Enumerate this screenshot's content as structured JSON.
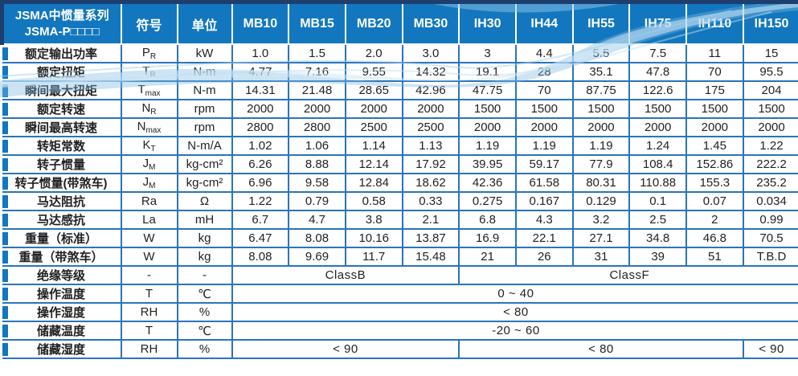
{
  "table_title": {
    "line1": "JSMA中惯量系列",
    "line2": "JSMA-P□□□□"
  },
  "columns": {
    "symbol": "符号",
    "unit": "单位",
    "models": [
      "MB10",
      "MB15",
      "MB20",
      "MB30",
      "IH30",
      "IH44",
      "IH55",
      "IH75",
      "IH110",
      "IH150"
    ]
  },
  "colors": {
    "header_blue": "#1277be",
    "border_blue": "#2a74b9",
    "navy_edge": "#1e3f6e",
    "wave_light": "#cfe7f5",
    "wave_mid": "#7db9e0",
    "body_text": "#1f1f1f"
  },
  "rows": [
    {
      "label": "额定输出功率",
      "symbol": {
        "base": "P",
        "sub": "R"
      },
      "unit": "kW",
      "values": [
        "1.0",
        "1.5",
        "2.0",
        "3.0",
        "3",
        "4.4",
        "5.5",
        "7.5",
        "11",
        "15"
      ]
    },
    {
      "label": "额定扭矩",
      "symbol": {
        "base": "T",
        "sub": "R"
      },
      "unit": "N-m",
      "values": [
        "4.77",
        "7.16",
        "9.55",
        "14.32",
        "19.1",
        "28",
        "35.1",
        "47.8",
        "70",
        "95.5"
      ]
    },
    {
      "label": "瞬间最大扭矩",
      "symbol": {
        "base": "T",
        "sub": "max"
      },
      "unit": "N-m",
      "values": [
        "14.31",
        "21.48",
        "28.65",
        "42.96",
        "47.75",
        "70",
        "87.75",
        "122.6",
        "175",
        "204"
      ]
    },
    {
      "label": "额定转速",
      "symbol": {
        "base": "N",
        "sub": "R"
      },
      "unit": "rpm",
      "values": [
        "2000",
        "2000",
        "2000",
        "2000",
        "1500",
        "1500",
        "1500",
        "1500",
        "1500",
        "1500"
      ]
    },
    {
      "label": "瞬间最高转速",
      "symbol": {
        "base": "N",
        "sub": "max"
      },
      "unit": "rpm",
      "values": [
        "2800",
        "2800",
        "2500",
        "2500",
        "2000",
        "2000",
        "2000",
        "2000",
        "2000",
        "2000"
      ]
    },
    {
      "label": "转矩常数",
      "symbol": {
        "base": "K",
        "sub": "T"
      },
      "unit": "N-m/A",
      "values": [
        "1.02",
        "1.06",
        "1.14",
        "1.13",
        "1.19",
        "1.19",
        "1.19",
        "1.24",
        "1.45",
        "1.22"
      ]
    },
    {
      "label": "转子惯量",
      "symbol": {
        "base": "J",
        "sub": "M"
      },
      "unit": "kg-cm²",
      "values": [
        "6.26",
        "8.88",
        "12.14",
        "17.92",
        "39.95",
        "59.17",
        "77.9",
        "108.4",
        "152.86",
        "222.2"
      ]
    },
    {
      "label": "转子惯量(带煞车)",
      "symbol": {
        "base": "J",
        "sub": "M"
      },
      "unit": "kg-cm²",
      "values": [
        "6.96",
        "9.58",
        "12.84",
        "18.62",
        "42.36",
        "61.58",
        "80.31",
        "110.88",
        "155.3",
        "235.2"
      ]
    },
    {
      "label": "马达阻抗",
      "symbol": {
        "base": "Ra",
        "sub": ""
      },
      "unit": "Ω",
      "values": [
        "1.22",
        "0.79",
        "0.58",
        "0.33",
        "0.275",
        "0.167",
        "0.129",
        "0.1",
        "0.07",
        "0.034"
      ]
    },
    {
      "label": "马达感抗",
      "symbol": {
        "base": "La",
        "sub": ""
      },
      "unit": "mH",
      "values": [
        "6.7",
        "4.7",
        "3.8",
        "2.1",
        "6.8",
        "4.3",
        "3.2",
        "2.5",
        "2",
        "0.99"
      ]
    },
    {
      "label": "重量（标准）",
      "symbol": {
        "base": "W",
        "sub": ""
      },
      "unit": "kg",
      "values": [
        "6.47",
        "8.08",
        "10.16",
        "13.87",
        "16.9",
        "22.1",
        "27.1",
        "34.8",
        "46.8",
        "70.5"
      ]
    },
    {
      "label": "重量（带煞车）",
      "symbol": {
        "base": "W",
        "sub": ""
      },
      "unit": "kg",
      "values": [
        "8.08",
        "9.69",
        "11.7",
        "15.48",
        "21",
        "26",
        "31",
        "39",
        "51",
        "T.B.D"
      ]
    },
    {
      "label": "绝缘等级",
      "symbol": {
        "base": "-",
        "sub": ""
      },
      "unit": "-",
      "spans": [
        {
          "text": "ClassB",
          "cols": 4
        },
        {
          "text": "ClassF",
          "cols": 6
        }
      ]
    },
    {
      "label": "操作温度",
      "symbol": {
        "base": "T",
        "sub": ""
      },
      "unit": "℃",
      "spans": [
        {
          "text": "0 ~ 40",
          "cols": 10
        }
      ]
    },
    {
      "label": "操作湿度",
      "symbol": {
        "base": "RH",
        "sub": ""
      },
      "unit": "%",
      "spans": [
        {
          "text": "< 80",
          "cols": 10
        }
      ]
    },
    {
      "label": "储藏温度",
      "symbol": {
        "base": "T",
        "sub": ""
      },
      "unit": "℃",
      "spans": [
        {
          "text": "-20 ~ 60",
          "cols": 10
        }
      ]
    },
    {
      "label": "储藏湿度",
      "symbol": {
        "base": "RH",
        "sub": ""
      },
      "unit": "%",
      "spans": [
        {
          "text": "< 90",
          "cols": 4
        },
        {
          "text": "< 80",
          "cols": 5
        },
        {
          "text": "< 90",
          "cols": 1
        }
      ]
    }
  ]
}
